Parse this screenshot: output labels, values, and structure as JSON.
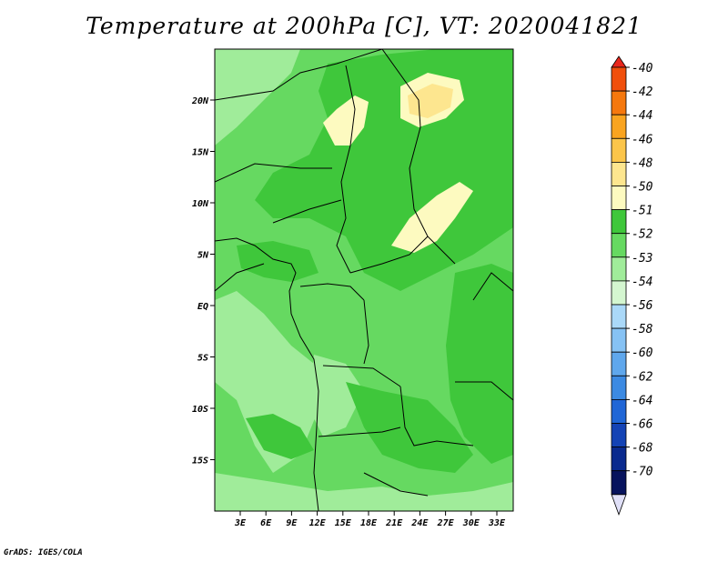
{
  "title": "Temperature at 200hPa [C], VT: 2020041821",
  "credit": "GrADS: IGES/COLA",
  "lat_ticks": [
    "20N",
    "15N",
    "10N",
    "5N",
    "EQ",
    "5S",
    "10S",
    "15S"
  ],
  "lon_ticks": [
    "3E",
    "6E",
    "9E",
    "12E",
    "15E",
    "18E",
    "21E",
    "24E",
    "27E",
    "30E",
    "33E"
  ],
  "colorbar": {
    "labels": [
      "-40",
      "-42",
      "-44",
      "-46",
      "-48",
      "-50",
      "-51",
      "-52",
      "-53",
      "-54",
      "-56",
      "-58",
      "-60",
      "-62",
      "-64",
      "-66",
      "-68",
      "-70"
    ],
    "colors": [
      "#e8271c",
      "#f04f0c",
      "#f5780e",
      "#f9a420",
      "#fbc54a",
      "#fde68f",
      "#fdfac0",
      "#3fc73b",
      "#66d961",
      "#a0ec9a",
      "#d4f6d0",
      "#aad8f8",
      "#86c2f4",
      "#5fa7ec",
      "#3c8ae2",
      "#2066d6",
      "#1443b5",
      "#0a2a8e",
      "#07135d"
    ],
    "top_color": "#e8271c",
    "bottom_color": "#e0e0f8"
  }
}
